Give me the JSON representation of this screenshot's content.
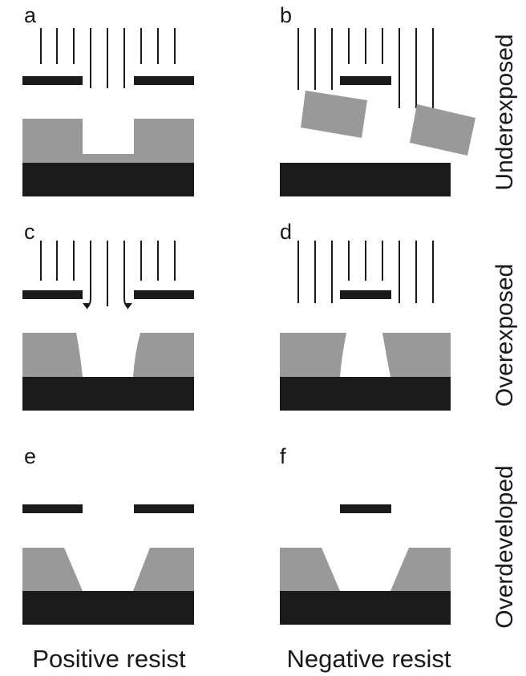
{
  "panels": {
    "a": {
      "letter": "a"
    },
    "b": {
      "letter": "b"
    },
    "c": {
      "letter": "c"
    },
    "d": {
      "letter": "d"
    },
    "e": {
      "letter": "e"
    },
    "f": {
      "letter": "f"
    }
  },
  "columns": {
    "left": "Positive resist",
    "right": "Negative resist"
  },
  "rows": {
    "top": "Underexposed",
    "middle": "Overexposed",
    "bottom": "Overdeveloped"
  },
  "colors": {
    "substrate": "#1a1a1a",
    "mask": "#1a1a1a",
    "resist": "#999999",
    "light": "#1a1a1a"
  }
}
